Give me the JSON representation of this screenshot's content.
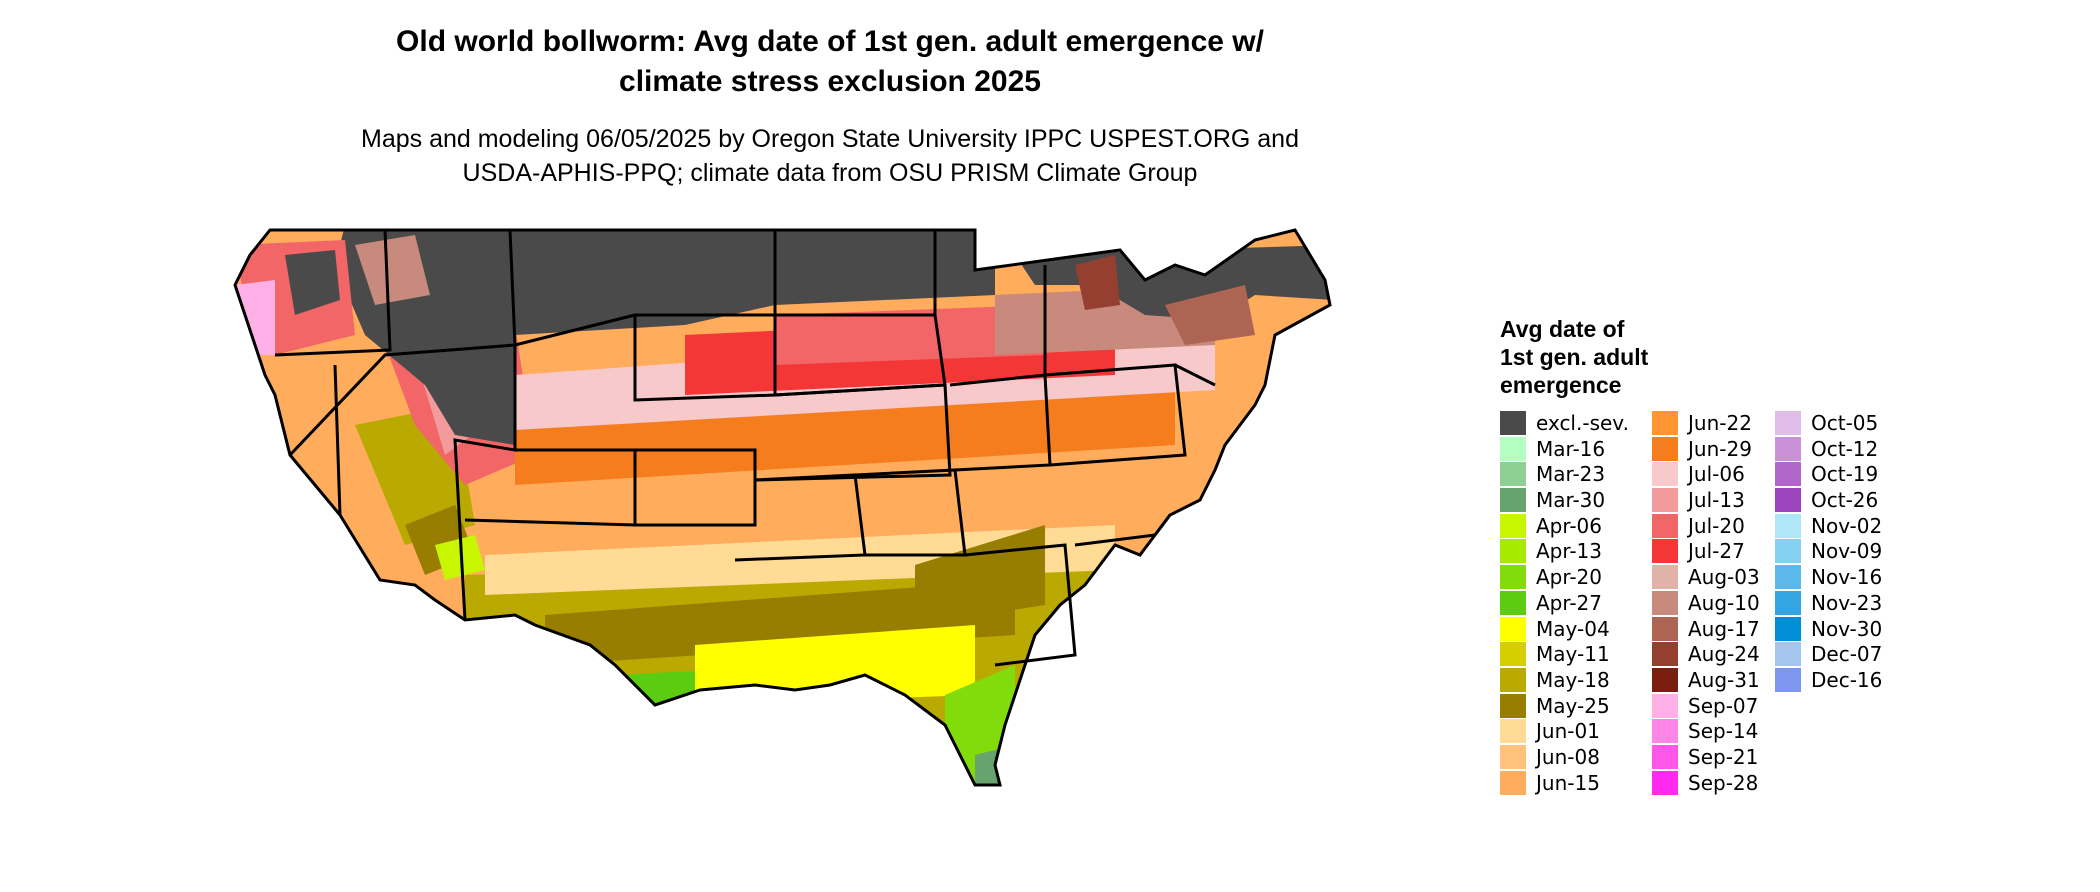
{
  "title_line1": "Old world bollworm: Avg date of 1st gen. adult emergence w/",
  "title_line2": "climate stress exclusion 2025",
  "subtitle_line1": "Maps and modeling 06/05/2025 by Oregon State University IPPC USPEST.ORG and",
  "subtitle_line2": "USDA-APHIS-PPQ; climate data from OSU PRISM Climate Group",
  "legend": {
    "title_line1": "Avg date of",
    "title_line2": "1st gen. adult",
    "title_line3": "emergence",
    "items": [
      {
        "label": "excl.-sev.",
        "color": "#4a4a4a"
      },
      {
        "label": "Mar-16",
        "color": "#b3ffc2"
      },
      {
        "label": "Mar-23",
        "color": "#8ecf94"
      },
      {
        "label": "Mar-30",
        "color": "#66a36d"
      },
      {
        "label": "Apr-06",
        "color": "#c8f500"
      },
      {
        "label": "Apr-13",
        "color": "#a5ea00"
      },
      {
        "label": "Apr-20",
        "color": "#82dc0c"
      },
      {
        "label": "Apr-27",
        "color": "#5ccc13"
      },
      {
        "label": "May-04",
        "color": "#ffff00"
      },
      {
        "label": "May-11",
        "color": "#d6cf00"
      },
      {
        "label": "May-18",
        "color": "#baa900"
      },
      {
        "label": "May-25",
        "color": "#977e00"
      },
      {
        "label": "Jun-01",
        "color": "#ffdb96"
      },
      {
        "label": "Jun-08",
        "color": "#ffc27c"
      },
      {
        "label": "Jun-15",
        "color": "#ffac5c"
      },
      {
        "label": "Jun-22",
        "color": "#ff9632"
      },
      {
        "label": "Jun-29",
        "color": "#f57d1e"
      },
      {
        "label": "Jul-06",
        "color": "#f7c9cb"
      },
      {
        "label": "Jul-13",
        "color": "#f39a9d"
      },
      {
        "label": "Jul-20",
        "color": "#f26668"
      },
      {
        "label": "Jul-27",
        "color": "#f43636"
      },
      {
        "label": "Aug-03",
        "color": "#e1b3a8"
      },
      {
        "label": "Aug-10",
        "color": "#c78a7c"
      },
      {
        "label": "Aug-17",
        "color": "#ad6452"
      },
      {
        "label": "Aug-24",
        "color": "#943f2f"
      },
      {
        "label": "Aug-31",
        "color": "#7a1e10"
      },
      {
        "label": "Sep-07",
        "color": "#ffb0e6"
      },
      {
        "label": "Sep-14",
        "color": "#ff85e6"
      },
      {
        "label": "Sep-21",
        "color": "#ff56ea"
      },
      {
        "label": "Sep-28",
        "color": "#ff29f0"
      },
      {
        "label": "Oct-05",
        "color": "#e0bde9"
      },
      {
        "label": "Oct-12",
        "color": "#c991d8"
      },
      {
        "label": "Oct-19",
        "color": "#b266cb"
      },
      {
        "label": "Oct-26",
        "color": "#9c45bd"
      },
      {
        "label": "Nov-02",
        "color": "#aee7f8"
      },
      {
        "label": "Nov-09",
        "color": "#83d0f1"
      },
      {
        "label": "Nov-16",
        "color": "#5bb9ea"
      },
      {
        "label": "Nov-23",
        "color": "#34a5e3"
      },
      {
        "label": "Nov-30",
        "color": "#008fd6"
      },
      {
        "label": "Dec-07",
        "color": "#a5c4ee"
      },
      {
        "label": "Dec-16",
        "color": "#7e96f0"
      }
    ]
  }
}
